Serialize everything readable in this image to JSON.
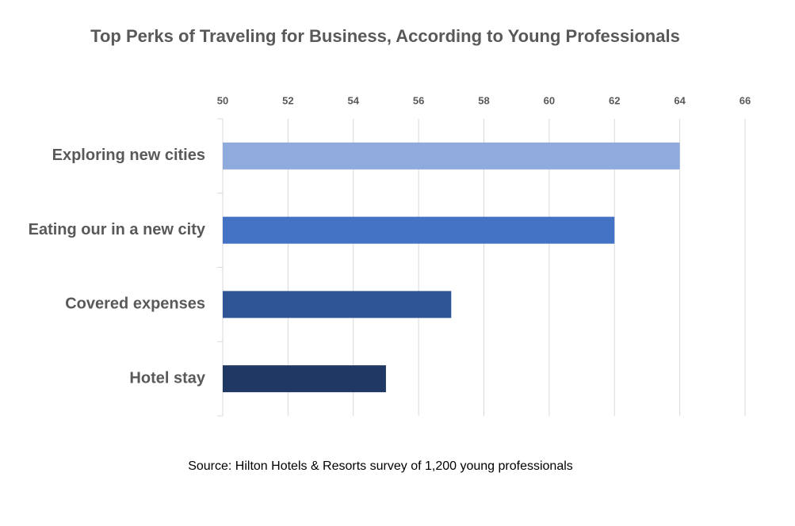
{
  "chart_data": {
    "type": "hbar",
    "title": "Top Perks of Traveling for Business, According to Young Professionals",
    "categories": [
      "Exploring new cities",
      "Eating our in a new city",
      "Covered expenses",
      "Hotel stay"
    ],
    "values": [
      64,
      62,
      57,
      55
    ],
    "colors": [
      "#8faadc",
      "#4472c4",
      "#2f5597",
      "#203864"
    ],
    "xlim": [
      50,
      66
    ],
    "xticks": [
      50,
      52,
      54,
      56,
      58,
      60,
      62,
      64,
      66
    ],
    "grid": true,
    "note": "Source: Hilton Hotels & Resorts survey of 1,200 young professionals"
  }
}
